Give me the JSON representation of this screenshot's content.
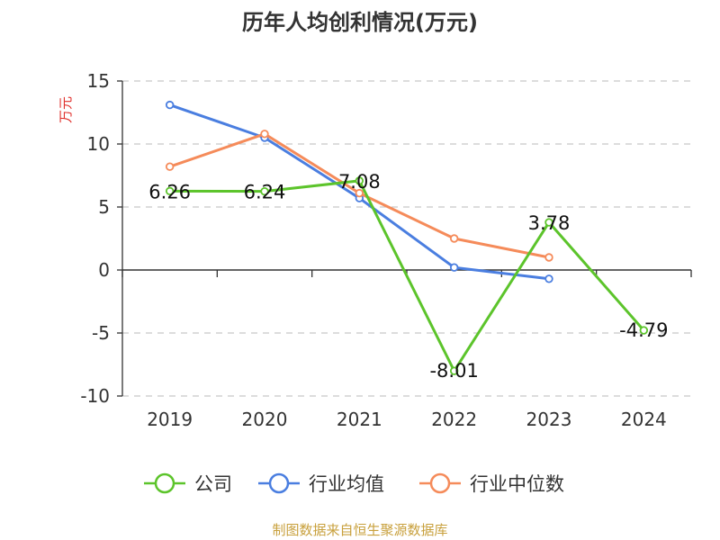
{
  "chart_data": {
    "type": "line",
    "title": "历年人均创利情况(万元)",
    "ylabel": "万元",
    "categories": [
      "2019",
      "2020",
      "2021",
      "2022",
      "2023",
      "2024"
    ],
    "ylim": [
      -10,
      15
    ],
    "yticks": [
      15,
      10,
      5,
      0,
      -5,
      -10
    ],
    "grid": true,
    "legend_position": "bottom",
    "series": [
      {
        "name": "公司",
        "color": "#5cc42b",
        "values": [
          6.26,
          6.24,
          7.08,
          -8.01,
          3.78,
          -4.79
        ],
        "labels": [
          "6.26",
          "6.24",
          "7.08",
          "-8.01",
          "3.78",
          "-4.79"
        ]
      },
      {
        "name": "行业均值",
        "color": "#4a7ee0",
        "values": [
          13.1,
          10.5,
          5.7,
          0.2,
          -0.7,
          null
        ]
      },
      {
        "name": "行业中位数",
        "color": "#f58b5a",
        "values": [
          8.2,
          10.8,
          6.1,
          2.5,
          1.0,
          null
        ]
      }
    ],
    "source": "制图数据来自恒生聚源数据库"
  }
}
